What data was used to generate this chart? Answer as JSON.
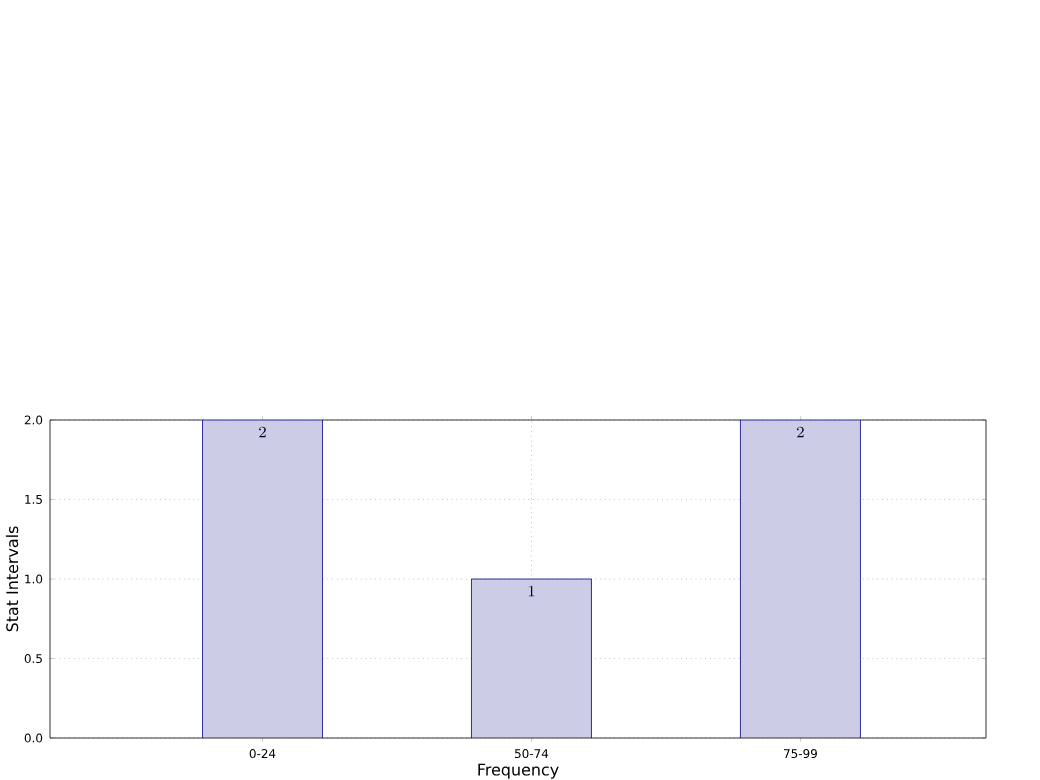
{
  "chart_data": {
    "type": "bar",
    "xlabel": "Frequency",
    "ylabel": "Stat Intervals",
    "categories": [
      "0-24",
      "50-74",
      "75-99"
    ],
    "values": [
      2,
      1,
      2
    ],
    "color": "#cccce6",
    "ylim": [
      0,
      2.0
    ],
    "yticks": [
      {
        "value": 0,
        "label": "0.0"
      },
      {
        "value": 0.5,
        "label": "0.5"
      },
      {
        "value": 1.0,
        "label": "1.0"
      },
      {
        "value": 1.5,
        "label": "1.5"
      },
      {
        "value": 2.0,
        "label": "2.0"
      }
    ],
    "grid": true,
    "data_labels": true
  }
}
